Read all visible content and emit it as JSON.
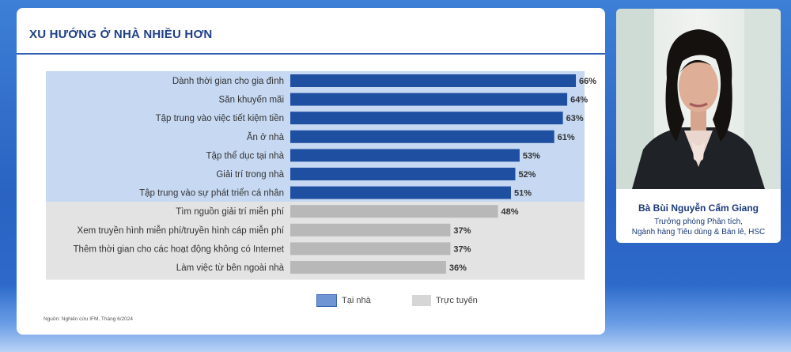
{
  "slide": {
    "title": "XU HƯỚNG Ở NHÀ NHIỀU HƠN",
    "source": "Nguồn: Nghiên cứu IFM, Tháng 6/2024"
  },
  "speaker": {
    "name": "Bà Bùi Nguyễn Cẩm Giang",
    "role_line1": "Trưởng phòng Phân tích,",
    "role_line2": "Ngành hàng Tiêu dùng & Bán lẻ, HSC"
  },
  "colors": {
    "at_home_bar": "#1f4fa0",
    "online_bar": "#b8b8b8",
    "at_home_band": "#c6d8f2",
    "online_band": "#e3e3e3"
  },
  "chart_data": {
    "type": "bar",
    "orientation": "horizontal",
    "categories": [
      "Dành thời gian cho gia đình",
      "Săn khuyến mãi",
      "Tập trung vào việc tiết kiệm tiền",
      "Ăn ở nhà",
      "Tập thể dục tại nhà",
      "Giải trí trong nhà",
      "Tập trung vào sự phát triển cá nhân",
      "Tìm nguồn giải trí miễn phí",
      "Xem truyền hình miễn phí/truyền hình cáp miễn phí",
      "Thêm thời gian cho các hoạt động không có Internet",
      "Làm việc từ bên ngoài nhà"
    ],
    "values": [
      66,
      64,
      63,
      61,
      53,
      52,
      51,
      48,
      37,
      37,
      36
    ],
    "value_labels": [
      "66%",
      "64%",
      "63%",
      "61%",
      "53%",
      "52%",
      "51%",
      "48%",
      "37%",
      "37%",
      "36%"
    ],
    "groups": [
      "home",
      "home",
      "home",
      "home",
      "home",
      "home",
      "home",
      "online",
      "online",
      "online",
      "online"
    ],
    "legend": [
      {
        "key": "home",
        "label": "Tại nhà"
      },
      {
        "key": "online",
        "label": "Trực tuyến"
      }
    ],
    "xlim": [
      0,
      100
    ],
    "unit": "%"
  }
}
